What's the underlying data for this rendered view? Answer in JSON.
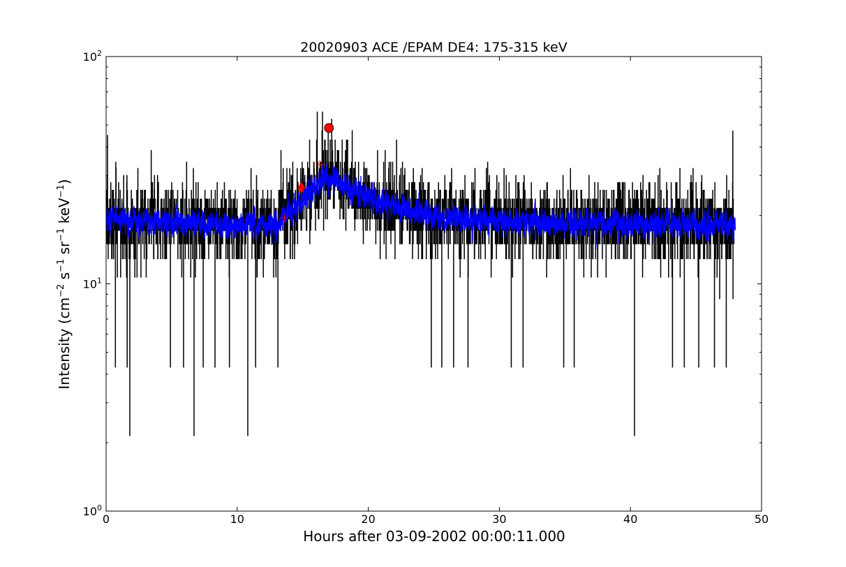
{
  "chart_data": {
    "type": "line",
    "title": "20020903 ACE /EPAM DE4: 175-315 keV",
    "xlabel": "Hours after 03-09-2002 00:00:11.000",
    "ylabel": {
      "prefix": "Intensity (cm",
      "sup1": "−2",
      "mid1": " s",
      "sup2": "−1",
      "mid2": " sr",
      "sup3": "−1",
      "mid3": " keV",
      "sup4": "−1",
      "suffix": ")"
    },
    "xlim": [
      0,
      50
    ],
    "ylim": [
      1,
      100
    ],
    "yscale": "log",
    "grid": false,
    "x_ticks": [
      0,
      10,
      20,
      30,
      40,
      50
    ],
    "x_tick_labels": [
      "0",
      "10",
      "20",
      "30",
      "40",
      "50"
    ],
    "y_ticks": [
      1,
      10,
      100
    ],
    "y_tick_labels": [
      {
        "base": "10",
        "exp": "0"
      },
      {
        "base": "10",
        "exp": "1"
      },
      {
        "base": "10",
        "exp": "2"
      }
    ],
    "series": [
      {
        "role": "raw intensity",
        "color": "#000000",
        "x_range": [
          0,
          47.9
        ],
        "samples_per_hour": 60,
        "baseline_profile": [
          {
            "x": 0,
            "y": 19
          },
          {
            "x": 13.0,
            "y": 18
          },
          {
            "x": 14.5,
            "y": 22
          },
          {
            "x": 16.0,
            "y": 27
          },
          {
            "x": 17.0,
            "y": 30
          },
          {
            "x": 18.5,
            "y": 26
          },
          {
            "x": 20.0,
            "y": 24
          },
          {
            "x": 23.0,
            "y": 21
          },
          {
            "x": 27.0,
            "y": 19
          },
          {
            "x": 48.0,
            "y": 18
          }
        ],
        "quantized_levels": [
          4.3,
          6.4,
          8.6,
          10.7,
          12.9,
          15.0,
          17.2,
          19.3,
          21.5,
          23.6,
          25.8,
          27.9,
          30.0,
          32.2,
          34.3,
          38.6,
          42.9,
          47.2,
          57.0
        ],
        "spikes": [
          {
            "x": 1.8,
            "y": 2.15
          },
          {
            "x": 6.7,
            "y": 2.15
          },
          {
            "x": 10.8,
            "y": 2.15
          },
          {
            "x": 40.3,
            "y": 2.15
          },
          {
            "x": 0.7,
            "y": 4.3
          },
          {
            "x": 1.6,
            "y": 4.3
          },
          {
            "x": 4.9,
            "y": 4.3
          },
          {
            "x": 5.9,
            "y": 4.3
          },
          {
            "x": 7.4,
            "y": 4.3
          },
          {
            "x": 8.3,
            "y": 4.3
          },
          {
            "x": 9.4,
            "y": 4.3
          },
          {
            "x": 11.4,
            "y": 4.3
          },
          {
            "x": 13.1,
            "y": 4.3
          },
          {
            "x": 24.8,
            "y": 4.3
          },
          {
            "x": 25.6,
            "y": 4.3
          },
          {
            "x": 26.5,
            "y": 4.3
          },
          {
            "x": 27.6,
            "y": 4.3
          },
          {
            "x": 30.9,
            "y": 4.3
          },
          {
            "x": 31.8,
            "y": 4.3
          },
          {
            "x": 34.9,
            "y": 4.3
          },
          {
            "x": 35.7,
            "y": 4.3
          },
          {
            "x": 43.2,
            "y": 4.3
          },
          {
            "x": 44.1,
            "y": 4.3
          },
          {
            "x": 45.2,
            "y": 4.3
          },
          {
            "x": 46.4,
            "y": 4.3
          },
          {
            "x": 47.3,
            "y": 4.3
          },
          {
            "x": 16.1,
            "y": 57.0
          },
          {
            "x": 16.5,
            "y": 57.0
          },
          {
            "x": 17.2,
            "y": 53.0
          },
          {
            "x": 0.1,
            "y": 45.0
          },
          {
            "x": 47.8,
            "y": 47.0
          }
        ]
      },
      {
        "role": "smoothed intensity",
        "color": "#0000ff",
        "x_range": [
          0,
          48.0
        ]
      }
    ],
    "markers": [
      {
        "shape": "plus",
        "x": 13.6,
        "y": 19.5,
        "color": "#ff0000"
      },
      {
        "shape": "diamond",
        "x": 14.9,
        "y": 26.5,
        "color": "#ff0000"
      },
      {
        "shape": "plus",
        "x": 16.3,
        "y": 33.5,
        "color": "#ff0000"
      },
      {
        "shape": "circle",
        "x": 17.0,
        "y": 48.5,
        "color": "#ff0000"
      }
    ]
  }
}
